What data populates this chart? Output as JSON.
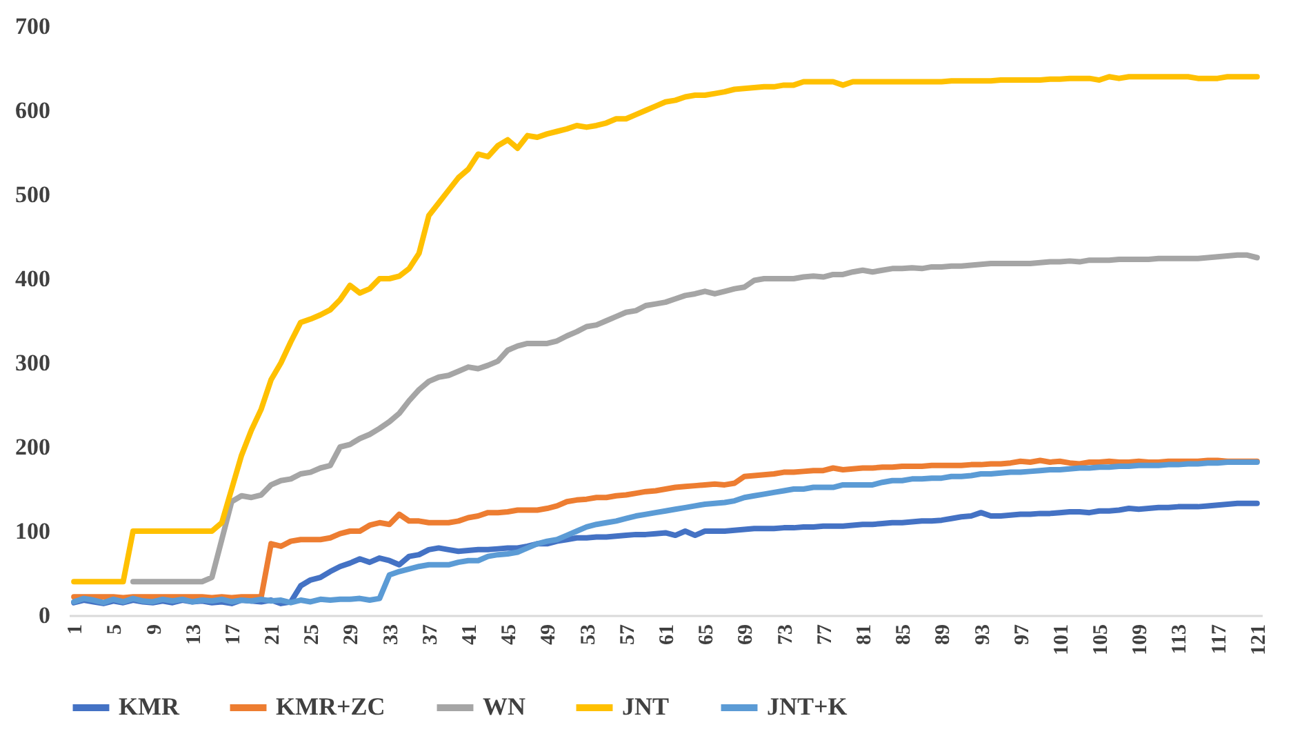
{
  "chart_data": {
    "type": "line",
    "categories": [
      "1",
      null,
      null,
      null,
      "5",
      null,
      null,
      null,
      "9",
      null,
      null,
      null,
      "13",
      null,
      null,
      null,
      "17",
      null,
      null,
      null,
      "21",
      null,
      null,
      null,
      "25",
      null,
      null,
      null,
      "29",
      null,
      null,
      null,
      "33",
      null,
      null,
      null,
      "37",
      null,
      null,
      null,
      "41",
      null,
      null,
      null,
      "45",
      null,
      null,
      null,
      "49",
      null,
      null,
      null,
      "53",
      null,
      null,
      null,
      "57",
      null,
      null,
      null,
      "61",
      null,
      null,
      null,
      "65",
      null,
      null,
      null,
      "69",
      null,
      null,
      null,
      "73",
      null,
      null,
      null,
      "77",
      null,
      null,
      null,
      "81",
      null,
      null,
      null,
      "85",
      null,
      null,
      null,
      "89",
      null,
      null,
      null,
      "93",
      null,
      null,
      null,
      "97",
      null,
      null,
      null,
      "101",
      null,
      null,
      null,
      "105",
      null,
      null,
      null,
      "109",
      null,
      null,
      null,
      "113",
      null,
      null,
      null,
      "117",
      null,
      null,
      null,
      "121"
    ],
    "series": [
      {
        "name": "KMR",
        "color": "#4472c4",
        "values": [
          15,
          18,
          16,
          14,
          17,
          15,
          18,
          16,
          15,
          17,
          15,
          18,
          16,
          17,
          15,
          16,
          14,
          18,
          17,
          16,
          18,
          14,
          16,
          35,
          42,
          45,
          52,
          58,
          62,
          67,
          63,
          68,
          65,
          60,
          70,
          72,
          78,
          80,
          78,
          76,
          77,
          78,
          78,
          79,
          80,
          80,
          82,
          85,
          85,
          88,
          90,
          92,
          92,
          93,
          93,
          94,
          95,
          96,
          96,
          97,
          98,
          95,
          100,
          95,
          100,
          100,
          100,
          101,
          102,
          103,
          103,
          103,
          104,
          104,
          105,
          105,
          106,
          106,
          106,
          107,
          108,
          108,
          109,
          110,
          110,
          111,
          112,
          112,
          113,
          115,
          117,
          118,
          122,
          118,
          118,
          119,
          120,
          120,
          121,
          121,
          122,
          123,
          123,
          122,
          124,
          124,
          125,
          127,
          126,
          127,
          128,
          128,
          129,
          129,
          129,
          130,
          131,
          132,
          133,
          133,
          133
        ]
      },
      {
        "name": "KMR+ZC",
        "color": "#ed7d31",
        "values": [
          22,
          22,
          22,
          22,
          22,
          21,
          22,
          22,
          22,
          22,
          22,
          22,
          22,
          22,
          21,
          22,
          21,
          22,
          22,
          22,
          85,
          82,
          88,
          90,
          90,
          90,
          92,
          97,
          100,
          100,
          107,
          110,
          108,
          120,
          112,
          112,
          110,
          110,
          110,
          112,
          116,
          118,
          122,
          122,
          123,
          125,
          125,
          125,
          127,
          130,
          135,
          137,
          138,
          140,
          140,
          142,
          143,
          145,
          147,
          148,
          150,
          152,
          153,
          154,
          155,
          156,
          155,
          157,
          165,
          166,
          167,
          168,
          170,
          170,
          171,
          172,
          172,
          175,
          173,
          174,
          175,
          175,
          176,
          176,
          177,
          177,
          177,
          178,
          178,
          178,
          178,
          179,
          179,
          180,
          180,
          181,
          183,
          182,
          184,
          182,
          183,
          181,
          180,
          182,
          182,
          183,
          182,
          182,
          183,
          182,
          182,
          183,
          183,
          183,
          183,
          184,
          184,
          183,
          183,
          183,
          183
        ]
      },
      {
        "name": "WN",
        "color": "#a5a5a5",
        "values": [
          null,
          null,
          null,
          null,
          null,
          null,
          40,
          40,
          40,
          40,
          40,
          40,
          40,
          40,
          45,
          90,
          135,
          142,
          140,
          143,
          155,
          160,
          162,
          168,
          170,
          175,
          178,
          200,
          203,
          210,
          215,
          222,
          230,
          240,
          255,
          268,
          278,
          283,
          285,
          290,
          295,
          293,
          297,
          302,
          315,
          320,
          323,
          323,
          323,
          326,
          332,
          337,
          343,
          345,
          350,
          355,
          360,
          362,
          368,
          370,
          372,
          376,
          380,
          382,
          385,
          382,
          385,
          388,
          390,
          398,
          400,
          400,
          400,
          400,
          402,
          403,
          402,
          405,
          405,
          408,
          410,
          408,
          410,
          412,
          412,
          413,
          412,
          414,
          414,
          415,
          415,
          416,
          417,
          418,
          418,
          418,
          418,
          418,
          419,
          420,
          420,
          421,
          420,
          422,
          422,
          422,
          423,
          423,
          423,
          423,
          424,
          424,
          424,
          424,
          424,
          425,
          426,
          427,
          428,
          428,
          425
        ]
      },
      {
        "name": "JNT",
        "color": "#ffc000",
        "values": [
          40,
          40,
          40,
          40,
          40,
          40,
          100,
          100,
          100,
          100,
          100,
          100,
          100,
          100,
          100,
          110,
          150,
          190,
          220,
          245,
          280,
          300,
          325,
          348,
          352,
          357,
          363,
          375,
          392,
          383,
          388,
          400,
          400,
          403,
          412,
          430,
          475,
          490,
          505,
          520,
          530,
          548,
          545,
          558,
          565,
          555,
          570,
          568,
          572,
          575,
          578,
          582,
          580,
          582,
          585,
          590,
          590,
          595,
          600,
          605,
          610,
          612,
          616,
          618,
          618,
          620,
          622,
          625,
          626,
          627,
          628,
          628,
          630,
          630,
          634,
          634,
          634,
          634,
          630,
          634,
          634,
          634,
          634,
          634,
          634,
          634,
          634,
          634,
          634,
          635,
          635,
          635,
          635,
          635,
          636,
          636,
          636,
          636,
          636,
          637,
          637,
          638,
          638,
          638,
          636,
          640,
          638,
          640,
          640,
          640,
          640,
          640,
          640,
          640,
          638,
          638,
          638,
          640,
          640,
          640,
          640
        ]
      },
      {
        "name": "JNT+K",
        "color": "#5b9bd5",
        "values": [
          16,
          20,
          18,
          15,
          19,
          16,
          20,
          17,
          16,
          19,
          17,
          19,
          16,
          18,
          17,
          19,
          16,
          18,
          17,
          19,
          17,
          18,
          15,
          18,
          16,
          19,
          18,
          19,
          19,
          20,
          18,
          20,
          48,
          52,
          55,
          58,
          60,
          60,
          60,
          63,
          65,
          65,
          70,
          72,
          73,
          75,
          80,
          85,
          88,
          90,
          95,
          100,
          105,
          108,
          110,
          112,
          115,
          118,
          120,
          122,
          124,
          126,
          128,
          130,
          132,
          133,
          134,
          136,
          140,
          142,
          144,
          146,
          148,
          150,
          150,
          152,
          152,
          152,
          155,
          155,
          155,
          155,
          158,
          160,
          160,
          162,
          162,
          163,
          163,
          165,
          165,
          166,
          168,
          168,
          169,
          170,
          170,
          171,
          172,
          173,
          173,
          174,
          175,
          175,
          176,
          176,
          177,
          177,
          178,
          178,
          178,
          179,
          179,
          180,
          180,
          181,
          181,
          182,
          182,
          182,
          182
        ]
      }
    ],
    "ylim": [
      0,
      700
    ],
    "yticks": [
      0,
      100,
      200,
      300,
      400,
      500,
      600,
      700
    ],
    "legend": "bottom"
  }
}
